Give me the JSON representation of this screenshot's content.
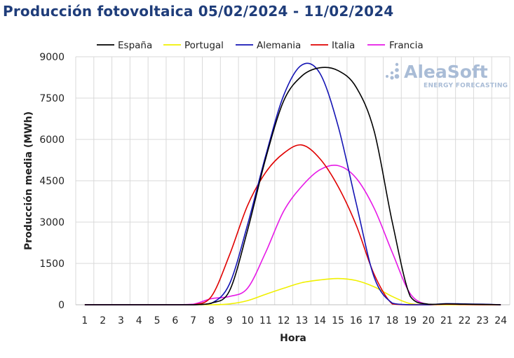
{
  "chart_data": {
    "type": "line",
    "title": "Producción fotovoltaica 05/02/2024 - 11/02/2024",
    "xlabel": "Hora",
    "ylabel": "Producción media (MWh)",
    "ylim": [
      0,
      9000
    ],
    "yticks": [
      "0",
      "1500",
      "3000",
      "4500",
      "6000",
      "7500",
      "9000"
    ],
    "x": [
      1,
      2,
      3,
      4,
      5,
      6,
      7,
      8,
      9,
      10,
      11,
      12,
      13,
      14,
      15,
      16,
      17,
      18,
      19,
      20,
      21,
      22,
      23,
      24
    ],
    "grid": true,
    "legend_position": "top",
    "series": [
      {
        "name": "España",
        "color": "#000000",
        "values": [
          0,
          0,
          0,
          0,
          0,
          0,
          0,
          60,
          500,
          2700,
          5300,
          7400,
          8300,
          8600,
          8500,
          7900,
          6300,
          3000,
          300,
          20,
          30,
          20,
          10,
          0
        ]
      },
      {
        "name": "Portugal",
        "color": "#f0f000",
        "values": [
          0,
          0,
          0,
          0,
          0,
          0,
          0,
          0,
          30,
          150,
          380,
          600,
          800,
          900,
          950,
          880,
          650,
          300,
          40,
          0,
          0,
          0,
          0,
          0
        ]
      },
      {
        "name": "Alemania",
        "color": "#1414b4",
        "values": [
          0,
          0,
          0,
          0,
          0,
          0,
          0,
          50,
          750,
          2900,
          5400,
          7600,
          8700,
          8400,
          6500,
          3700,
          1000,
          60,
          0,
          0,
          40,
          30,
          20,
          0
        ]
      },
      {
        "name": "Italia",
        "color": "#e00000",
        "values": [
          0,
          0,
          0,
          0,
          0,
          0,
          0,
          300,
          1800,
          3600,
          4800,
          5500,
          5800,
          5300,
          4300,
          2900,
          1100,
          30,
          0,
          0,
          20,
          10,
          0,
          0
        ]
      },
      {
        "name": "Francia",
        "color": "#e619e6",
        "values": [
          0,
          0,
          0,
          0,
          0,
          0,
          20,
          220,
          300,
          600,
          1900,
          3400,
          4300,
          4900,
          5050,
          4600,
          3500,
          1900,
          400,
          0,
          30,
          20,
          10,
          0
        ]
      }
    ]
  },
  "logo": {
    "main": "AleaSoft",
    "sub": "ENERGY FORECASTING",
    "color": "#a9bcd6"
  }
}
